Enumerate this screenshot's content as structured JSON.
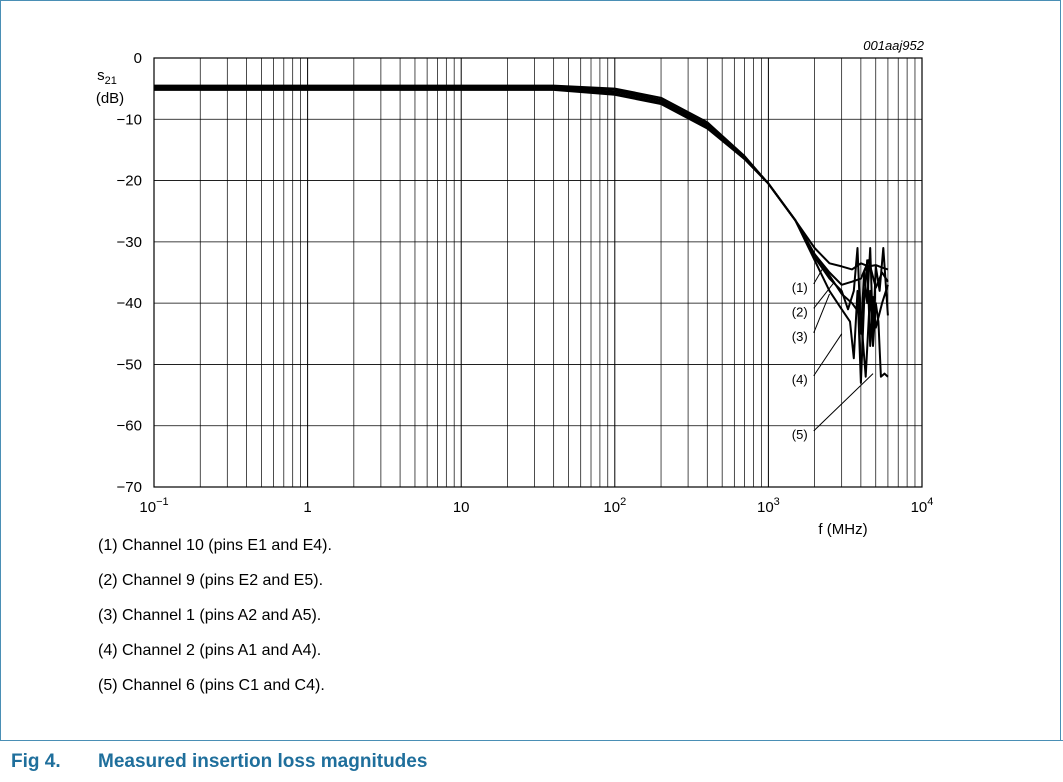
{
  "figure": {
    "number": "Fig 4.",
    "title": "Measured insertion loss magnitudes",
    "code": "001aaj952"
  },
  "chart_data": {
    "type": "line",
    "xscale": "log",
    "xlim": [
      0.1,
      10000
    ],
    "ylim": [
      -70,
      0
    ],
    "grid": true,
    "ylabel_main": "s",
    "ylabel_sub": "21",
    "ylabel_unit": "(dB)",
    "xlabel": "f (MHz)",
    "xticks": [
      {
        "value": 0.1,
        "base": "10",
        "exp": "−1"
      },
      {
        "value": 1,
        "base": "1",
        "exp": ""
      },
      {
        "value": 10,
        "base": "10",
        "exp": ""
      },
      {
        "value": 100,
        "base": "10",
        "exp": "2"
      },
      {
        "value": 1000,
        "base": "10",
        "exp": "3"
      },
      {
        "value": 10000,
        "base": "10",
        "exp": "4"
      }
    ],
    "yticks": [
      {
        "value": 0,
        "label": "0"
      },
      {
        "value": -10,
        "label": "−10"
      },
      {
        "value": -20,
        "label": "−20"
      },
      {
        "value": -30,
        "label": "−30"
      },
      {
        "value": -40,
        "label": "−40"
      },
      {
        "value": -50,
        "label": "−50"
      },
      {
        "value": -60,
        "label": "−60"
      },
      {
        "value": -70,
        "label": "−70"
      }
    ],
    "series": [
      {
        "marker": "(1)",
        "x": [
          0.1,
          1,
          10,
          40,
          100,
          200,
          400,
          700,
          1000,
          1500,
          2000,
          2500,
          3000,
          3500,
          4000,
          4500,
          5000,
          5500,
          6000
        ],
        "y": [
          -4.5,
          -4.5,
          -4.5,
          -4.5,
          -5.0,
          -6.5,
          -10.5,
          -16.0,
          -20.5,
          -26.5,
          -31.0,
          -33.5,
          -34.0,
          -34.5,
          -33.5,
          -34.0,
          -33.8,
          -34.2,
          -34.5
        ]
      },
      {
        "marker": "(2)",
        "x": [
          0.1,
          1,
          10,
          40,
          100,
          200,
          400,
          700,
          1000,
          1500,
          2000,
          2500,
          3000,
          3500,
          4000,
          4500,
          5000,
          5500,
          6000
        ],
        "y": [
          -5.2,
          -5.2,
          -5.2,
          -5.2,
          -6.0,
          -7.5,
          -11.5,
          -16.5,
          -20.5,
          -26.5,
          -32.0,
          -35.0,
          -37.0,
          -36.5,
          -36.0,
          -33.0,
          -37.5,
          -35.0,
          -36.5
        ]
      },
      {
        "marker": "(3)",
        "x": [
          0.1,
          1,
          10,
          40,
          100,
          200,
          400,
          700,
          1000,
          1500,
          2000,
          2500,
          3000,
          3300,
          3600,
          3800,
          4000,
          4200,
          4400,
          4600,
          4800,
          5000,
          5300,
          5600,
          6000
        ],
        "y": [
          -4.8,
          -4.8,
          -4.8,
          -4.8,
          -5.5,
          -7.0,
          -11.0,
          -16.3,
          -20.5,
          -26.5,
          -32.5,
          -36.0,
          -38.0,
          -41.0,
          -38.0,
          -31.0,
          -45.0,
          -35.0,
          -40.0,
          -31.0,
          -45.0,
          -34.0,
          -38.0,
          -31.0,
          -42.0
        ]
      },
      {
        "marker": "(4)",
        "x": [
          0.1,
          1,
          10,
          40,
          100,
          200,
          400,
          700,
          1000,
          1500,
          2000,
          2500,
          3000,
          3400,
          3600,
          3800,
          4000,
          4200,
          4400,
          4600,
          4800,
          5000,
          5500,
          6000
        ],
        "y": [
          -5.0,
          -5.0,
          -5.0,
          -5.0,
          -5.8,
          -7.3,
          -11.3,
          -16.5,
          -20.5,
          -26.5,
          -33.0,
          -38.0,
          -41.0,
          -43.0,
          -49.0,
          -38.0,
          -53.0,
          -40.0,
          -33.0,
          -47.0,
          -39.0,
          -44.0,
          -40.0,
          -37.0
        ]
      },
      {
        "marker": "(5)",
        "x": [
          0.1,
          1,
          10,
          40,
          100,
          200,
          400,
          700,
          1000,
          1500,
          2000,
          2500,
          3000,
          3500,
          4000,
          4300,
          4600,
          4800,
          5000,
          5200,
          5400,
          5700,
          6000
        ],
        "y": [
          -4.6,
          -4.6,
          -4.6,
          -4.6,
          -5.2,
          -6.8,
          -10.8,
          -16.2,
          -20.5,
          -26.5,
          -32.0,
          -35.5,
          -38.5,
          -40.0,
          -42.0,
          -52.0,
          -38.0,
          -47.0,
          -40.0,
          -43.0,
          -52.0,
          -51.5,
          -52.0
        ]
      }
    ],
    "annotations": [
      {
        "label": "(1)",
        "point_x": 2300,
        "point_y": -34.0,
        "label_x": 1600,
        "label_y": -37.5
      },
      {
        "label": "(2)",
        "point_x": 2700,
        "point_y": -36.5,
        "label_x": 1600,
        "label_y": -41.5
      },
      {
        "label": "(3)",
        "point_x": 2500,
        "point_y": -38.5,
        "label_x": 1600,
        "label_y": -45.5
      },
      {
        "label": "(4)",
        "point_x": 3000,
        "point_y": -45.0,
        "label_x": 1600,
        "label_y": -52.5
      },
      {
        "label": "(5)",
        "point_x": 4800,
        "point_y": -51.5,
        "label_x": 1600,
        "label_y": -61.5
      }
    ]
  },
  "legend": [
    {
      "key": "(1)",
      "text": "Channel 10 (pins E1 and E4)."
    },
    {
      "key": "(2)",
      "text": "Channel 9 (pins E2 and E5)."
    },
    {
      "key": "(3)",
      "text": "Channel 1 (pins A2 and A5)."
    },
    {
      "key": "(4)",
      "text": "Channel 2 (pins A1 and A4)."
    },
    {
      "key": "(5)",
      "text": "Channel 6 (pins C1 and C4)."
    }
  ]
}
